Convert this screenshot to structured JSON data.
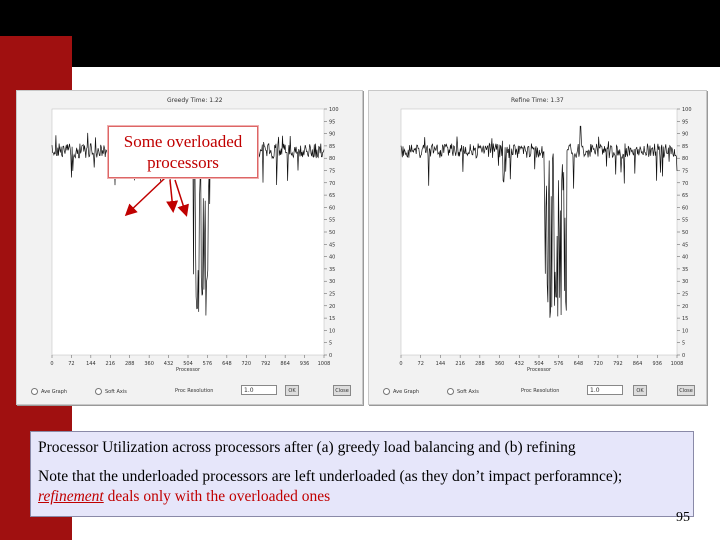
{
  "slide": {
    "number": "95",
    "callout": {
      "line1": "Some overloaded",
      "line2": "processors"
    },
    "caption": {
      "line1": "Processor Utilization across processors after (a) greedy load balancing and (b) refining",
      "line2_start": "Note that the underloaded processors are left underloaded (as they don’t impact perforamnce); ",
      "line2_link": "refinement",
      "line2_end": " deals only with the overloaded ones"
    }
  },
  "colors": {
    "title_bar": "#000000",
    "accent_red": "#a01010",
    "callout_text": "#c00000",
    "caption_bg": "#e6e6fa"
  },
  "plots": [
    {
      "id": "a",
      "title": "Greedy   Time: 1.22",
      "x_ticks": [
        "0",
        "72",
        "144",
        "216",
        "288",
        "360",
        "432",
        "504",
        "576",
        "648",
        "720",
        "792",
        "864",
        "936",
        "1008"
      ],
      "x_label": "Processor",
      "y_ticks": [
        "100",
        "95",
        "90",
        "85",
        "80",
        "75",
        "70",
        "65",
        "60",
        "55",
        "50",
        "45",
        "40",
        "35",
        "30",
        "25",
        "20",
        "15",
        "10",
        "5",
        "0"
      ],
      "controls": {
        "radio1": "Ave Graph",
        "radio2": "Soft Axis",
        "label": "Proc Resolution",
        "value": "1.0",
        "ok": "OK",
        "close": "Close"
      }
    },
    {
      "id": "b",
      "title": "Refine   Time: 1.37",
      "x_ticks": [
        "0",
        "72",
        "144",
        "216",
        "288",
        "360",
        "432",
        "504",
        "576",
        "648",
        "720",
        "792",
        "864",
        "936",
        "1008"
      ],
      "x_label": "Processor",
      "y_ticks": [
        "100",
        "95",
        "90",
        "85",
        "80",
        "75",
        "70",
        "65",
        "60",
        "55",
        "50",
        "45",
        "40",
        "35",
        "30",
        "25",
        "20",
        "15",
        "10",
        "5",
        "0"
      ],
      "controls": {
        "radio1": "Ave Graph",
        "radio2": "Soft Axis",
        "label": "Proc Resolution",
        "value": "1.0",
        "ok": "OK",
        "close": "Close"
      }
    }
  ]
}
